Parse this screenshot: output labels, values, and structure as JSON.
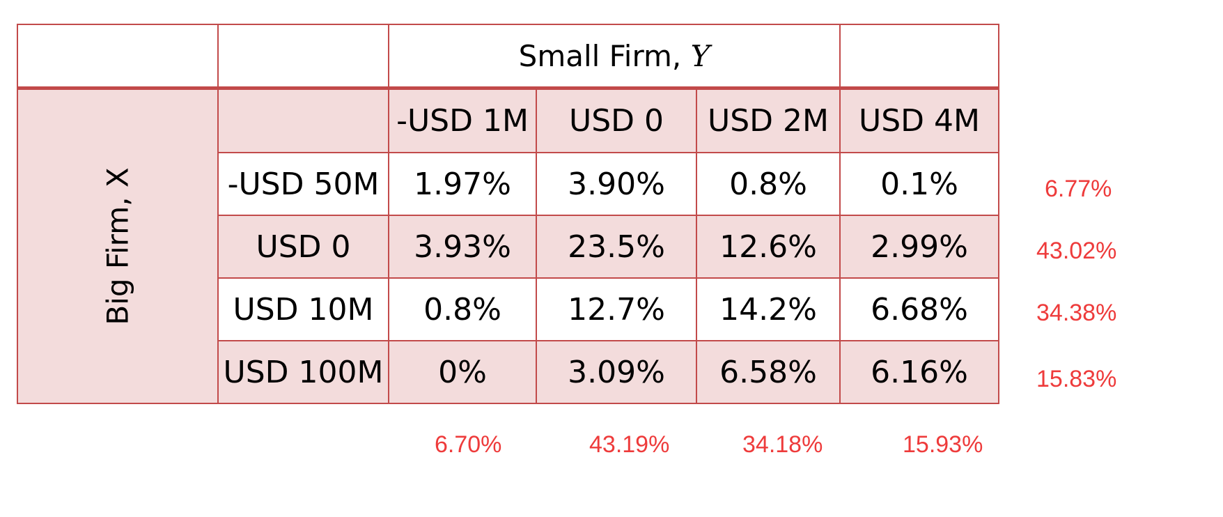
{
  "table": {
    "top_header": {
      "label": "Small Firm, ",
      "variable": "Y"
    },
    "side_header": "Big Firm, X",
    "columns": [
      "-USD 1M",
      "USD 0",
      "USD 2M",
      "USD 4M"
    ],
    "rows": [
      {
        "label": "-USD 50M",
        "values": [
          "1.97%",
          "3.90%",
          "0.8%",
          "0.1%"
        ]
      },
      {
        "label": "USD 0",
        "values": [
          "3.93%",
          "23.5%",
          "12.6%",
          "2.99%"
        ]
      },
      {
        "label": "USD 10M",
        "values": [
          "0.8%",
          "12.7%",
          "14.2%",
          "6.68%"
        ]
      },
      {
        "label": "USD 100M",
        "values": [
          "0%",
          "3.09%",
          "6.58%",
          "6.16%"
        ]
      }
    ]
  },
  "marginals": {
    "row_totals": [
      "6.77%",
      "43.02%",
      "34.38%",
      "15.83%"
    ],
    "column_totals": [
      "6.70%",
      "43.19%",
      "34.18%",
      "15.93%"
    ]
  },
  "colors": {
    "border": "#c24a4a",
    "shade": "#f3dcdc",
    "marginal_text": "#ee3b3b"
  }
}
